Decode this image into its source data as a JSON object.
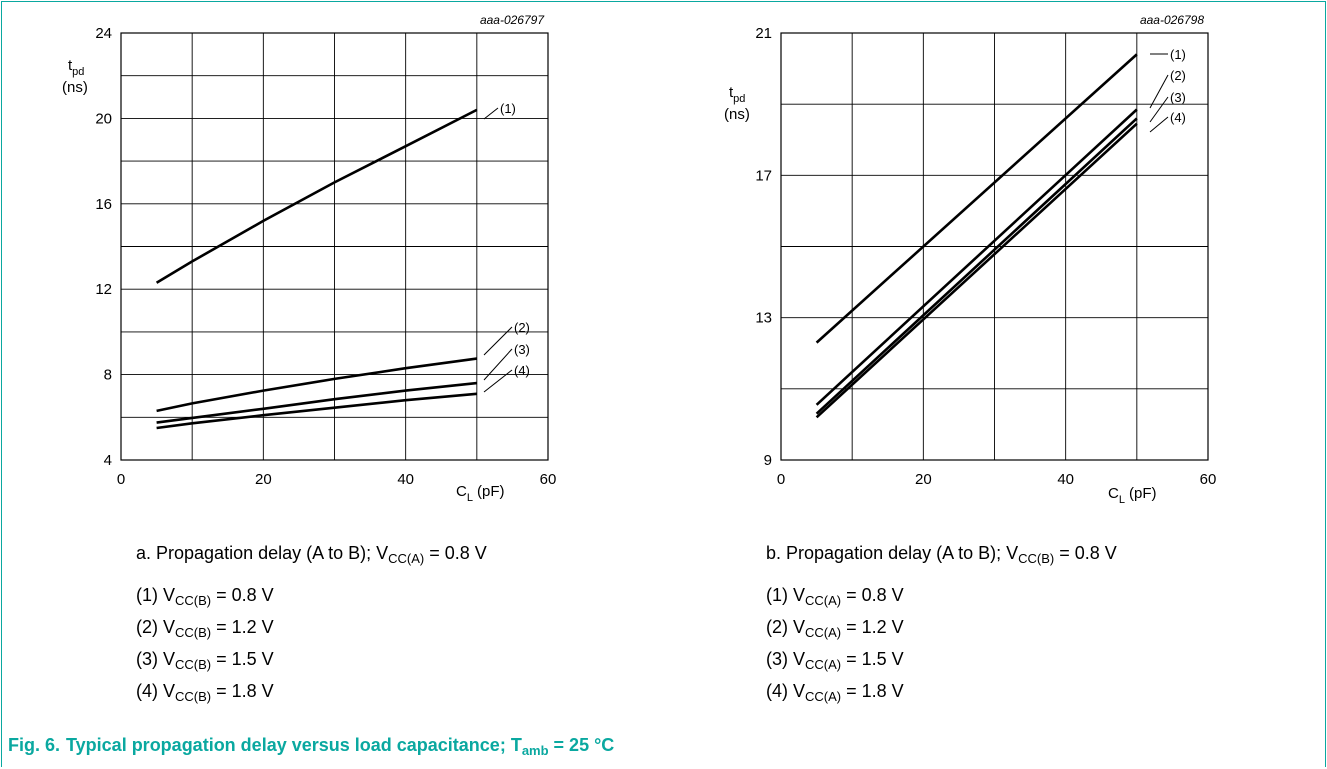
{
  "chart_data": [
    {
      "type": "line",
      "code": "aaa-026797",
      "ylabel": {
        "base": "t",
        "sub": "pd",
        "unit": "(ns)"
      },
      "xlabel": {
        "base": "C",
        "sub": "L",
        "unit": "(pF)"
      },
      "xlim": [
        0,
        60
      ],
      "ylim": [
        4,
        24
      ],
      "x_ticks": [
        0,
        20,
        40,
        60
      ],
      "y_ticks": [
        4,
        8,
        12,
        16,
        20,
        24
      ],
      "grid": true,
      "series": [
        {
          "name": "(1)",
          "x": [
            5,
            10,
            20,
            30,
            40,
            50
          ],
          "values": [
            12.3,
            13.3,
            15.2,
            17.0,
            18.7,
            20.4
          ]
        },
        {
          "name": "(2)",
          "x": [
            5,
            10,
            20,
            30,
            40,
            50
          ],
          "values": [
            6.3,
            6.65,
            7.25,
            7.8,
            8.3,
            8.75
          ]
        },
        {
          "name": "(3)",
          "x": [
            5,
            10,
            20,
            30,
            40,
            50
          ],
          "values": [
            5.75,
            5.97,
            6.4,
            6.85,
            7.25,
            7.6
          ]
        },
        {
          "name": "(4)",
          "x": [
            5,
            10,
            20,
            30,
            40,
            50
          ],
          "values": [
            5.5,
            5.72,
            6.1,
            6.45,
            6.8,
            7.1
          ]
        }
      ]
    },
    {
      "type": "line",
      "code": "aaa-026798",
      "ylabel": {
        "base": "t",
        "sub": "pd",
        "unit": "(ns)"
      },
      "xlabel": {
        "base": "C",
        "sub": "L",
        "unit": "(pF)"
      },
      "xlim": [
        0,
        60
      ],
      "ylim": [
        9,
        21
      ],
      "x_ticks": [
        0,
        20,
        40,
        60
      ],
      "y_ticks": [
        9,
        13,
        17,
        21
      ],
      "y_grid_step": 2,
      "grid": true,
      "series": [
        {
          "name": "(1)",
          "x": [
            5,
            50
          ],
          "values": [
            12.3,
            20.4
          ]
        },
        {
          "name": "(2)",
          "x": [
            5,
            50
          ],
          "values": [
            10.55,
            18.85
          ]
        },
        {
          "name": "(3)",
          "x": [
            5,
            50
          ],
          "values": [
            10.3,
            18.6
          ]
        },
        {
          "name": "(4)",
          "x": [
            5,
            50
          ],
          "values": [
            10.2,
            18.45
          ]
        }
      ]
    }
  ],
  "captions": {
    "a": {
      "heading": {
        "pre": "a. Propagation delay (A to B); V",
        "sub": "CC(A)",
        "post": " = 0.8 V"
      },
      "items": [
        {
          "pre": "(1) V",
          "sub": "CC(B)",
          "post": " = 0.8 V"
        },
        {
          "pre": "(2) V",
          "sub": "CC(B)",
          "post": " = 1.2 V"
        },
        {
          "pre": "(3) V",
          "sub": "CC(B)",
          "post": " = 1.5 V"
        },
        {
          "pre": "(4) V",
          "sub": "CC(B)",
          "post": " = 1.8 V"
        }
      ]
    },
    "b": {
      "heading": {
        "pre": "b. Propagation delay (A to B); V",
        "sub": "CC(B)",
        "post": " = 0.8 V"
      },
      "items": [
        {
          "pre": "(1) V",
          "sub": "CC(A)",
          "post": " = 0.8 V"
        },
        {
          "pre": "(2) V",
          "sub": "CC(A)",
          "post": " = 1.2 V"
        },
        {
          "pre": "(3) V",
          "sub": "CC(A)",
          "post": " = 1.5 V"
        },
        {
          "pre": "(4) V",
          "sub": "CC(A)",
          "post": " = 1.8 V"
        }
      ]
    }
  },
  "figure_caption": {
    "number": "Fig. 6.",
    "pre": "Typical propagation delay versus load capacitance; T",
    "sub": "amb",
    "post": " = 25 °C"
  },
  "colors": {
    "accent": "#0aa8a0",
    "line": "#000000",
    "grid": "#000000"
  }
}
